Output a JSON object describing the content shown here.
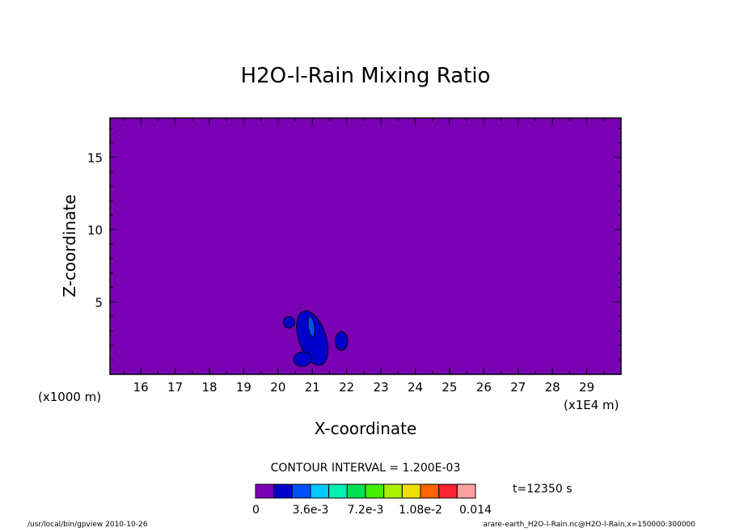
{
  "chart_data": {
    "type": "heatmap",
    "title": "H2O-l-Rain Mixing Ratio",
    "xlabel": "X-coordinate",
    "ylabel": "Z-coordinate",
    "x_unit": "(x1E4 m)",
    "y_unit": "(x1000 m)",
    "x_ticks": [
      16,
      17,
      18,
      19,
      20,
      21,
      22,
      23,
      24,
      25,
      26,
      27,
      28,
      29
    ],
    "y_ticks": [
      5,
      10,
      15
    ],
    "xlim": [
      15.1,
      30
    ],
    "ylim": [
      0,
      17.7
    ],
    "background_value": 0,
    "regions": [
      {
        "name": "left-blob",
        "cx": 20.32,
        "cy": 3.6,
        "rx": 0.17,
        "ry": 0.4,
        "rot": -35,
        "level": 1
      },
      {
        "name": "central-column",
        "cx": 21.0,
        "cy": 2.5,
        "rx": 0.4,
        "ry": 1.95,
        "rot": -18,
        "level": 1
      },
      {
        "name": "lower-left-blob",
        "cx": 20.72,
        "cy": 1.05,
        "rx": 0.27,
        "ry": 0.5,
        "rot": -10,
        "level": 1
      },
      {
        "name": "right-blob",
        "cx": 21.85,
        "cy": 2.3,
        "rx": 0.18,
        "ry": 0.65,
        "rot": 0,
        "level": 1
      },
      {
        "name": "core",
        "cx": 20.97,
        "cy": 3.3,
        "rx": 0.09,
        "ry": 0.7,
        "rot": -8,
        "level": 2
      }
    ],
    "contour_interval_text": "CONTOUR INTERVAL = 1.200E-03",
    "time_text": "t=12350 s",
    "colorbar": {
      "colors": [
        "#7a00b4",
        "#0000cc",
        "#0050ff",
        "#00c8ff",
        "#00f0b0",
        "#00e050",
        "#40f000",
        "#a8f000",
        "#f0e000",
        "#ff6400",
        "#ff2030",
        "#ffa0a0"
      ],
      "tick_labels": [
        "0",
        "3.6e-3",
        "7.2e-3",
        "1.08e-2",
        "0.014"
      ]
    },
    "footer_left": "/usr/local/bin/gpview  2010-10-26",
    "footer_right": "arare-earth_H2O-l-Rain.nc@H2O-l-Rain,x=150000:300000"
  }
}
